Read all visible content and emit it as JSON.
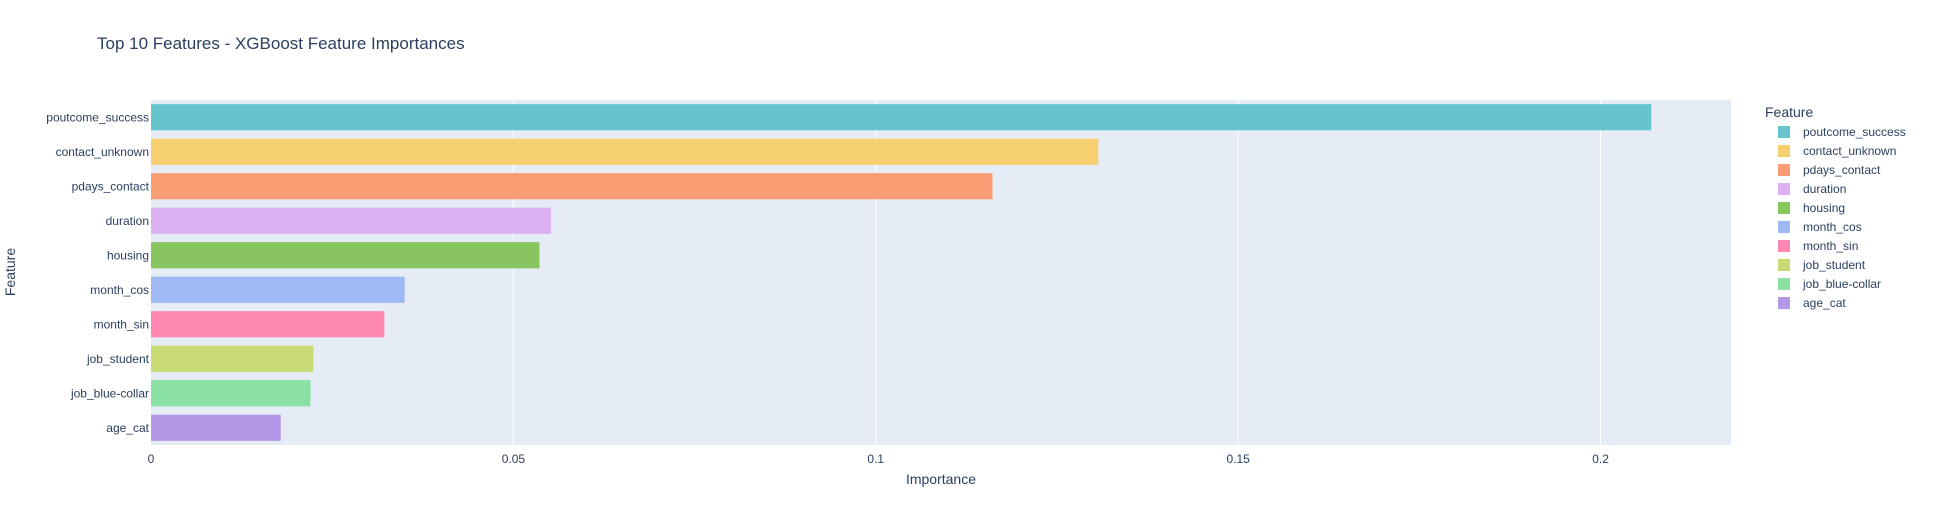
{
  "chart_data": {
    "type": "bar",
    "orientation": "horizontal",
    "title": "Top 10 Features - XGBoost Feature Importances",
    "xlabel": "Importance",
    "ylabel": "Feature",
    "xlim": [
      0,
      0.218
    ],
    "xticks": [
      0,
      0.05,
      0.1,
      0.15,
      0.2
    ],
    "xtick_labels": [
      "0",
      "0.05",
      "0.1",
      "0.15",
      "0.2"
    ],
    "grid": true,
    "legend_title": "Feature",
    "legend_position": "right",
    "categories": [
      "poutcome_success",
      "contact_unknown",
      "pdays_contact",
      "duration",
      "housing",
      "month_cos",
      "month_sin",
      "job_student",
      "job_blue-collar",
      "age_cat"
    ],
    "values": [
      0.207,
      0.1307,
      0.1161,
      0.0552,
      0.0536,
      0.035,
      0.0322,
      0.0224,
      0.022,
      0.0179
    ],
    "colors": [
      "#66C5CC",
      "#F6CF71",
      "#F89C74",
      "#DCB0F2",
      "#87C55F",
      "#9EB9F3",
      "#FE88B1",
      "#C9DB74",
      "#8BE0A4",
      "#B497E7"
    ],
    "plot_background": "#E5ECF6",
    "text_color": "#2a3f5f"
  }
}
